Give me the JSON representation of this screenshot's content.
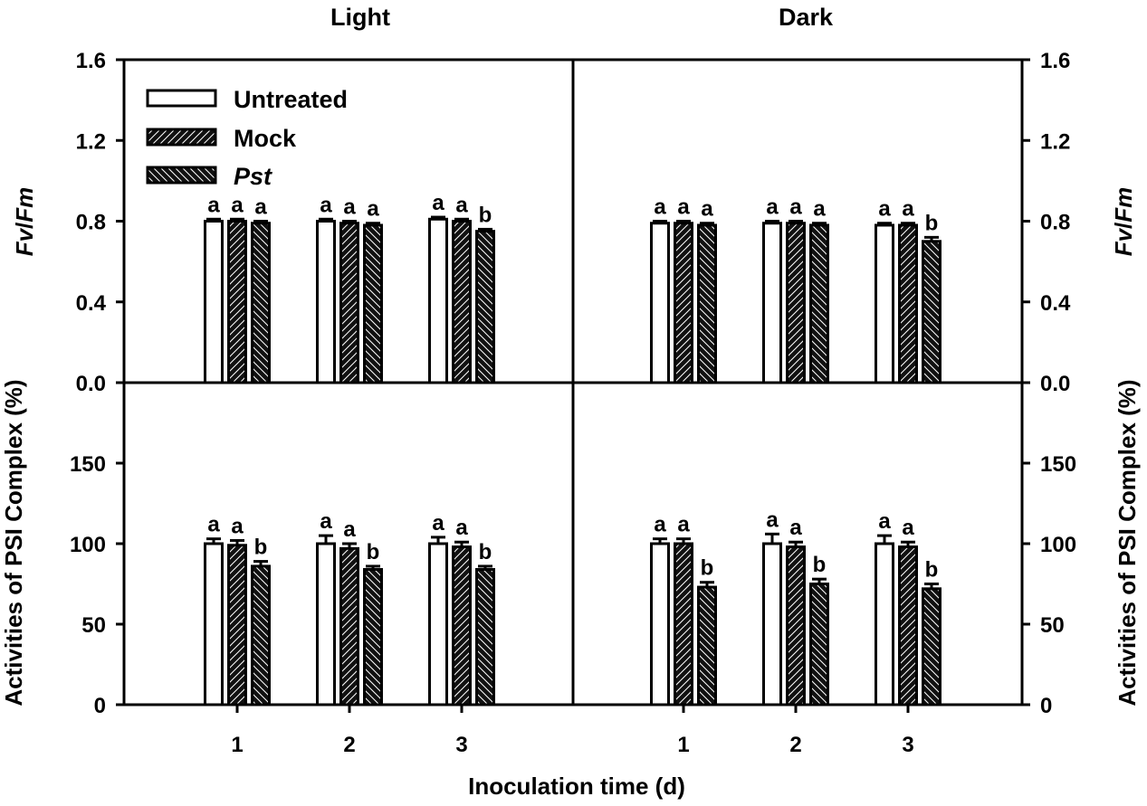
{
  "panel_titles": [
    "Light",
    "Dark"
  ],
  "x_axis_title": "Inoculation time (d)",
  "top_y_title_italic_1": "Fv",
  "top_y_title_sep": "/",
  "top_y_title_italic_2": "Fm",
  "bottom_y_title": "Activities of PSI Complex (%)",
  "top_y_ticks": [
    "0.0",
    "0.4",
    "0.8",
    "1.2",
    "1.6"
  ],
  "bottom_y_ticks": [
    "0",
    "50",
    "100",
    "150"
  ],
  "legend": [
    {
      "label": "Untreated",
      "italic": false
    },
    {
      "label": "Mock",
      "italic": false
    },
    {
      "label": "Pst",
      "italic": true
    }
  ],
  "chart_data": [
    {
      "type": "bar",
      "panel": "Light",
      "title": "Light",
      "xlabel": "",
      "ylabel": "Fv/Fm",
      "ylim": [
        0,
        1.6
      ],
      "categories": [
        "1",
        "2",
        "3"
      ],
      "series": [
        {
          "name": "Untreated",
          "values": [
            0.8,
            0.8,
            0.81
          ],
          "errors": [
            0.01,
            0.01,
            0.01
          ]
        },
        {
          "name": "Mock",
          "values": [
            0.8,
            0.79,
            0.8
          ],
          "errors": [
            0.01,
            0.01,
            0.01
          ]
        },
        {
          "name": "Pst",
          "values": [
            0.79,
            0.78,
            0.75
          ],
          "errors": [
            0.01,
            0.01,
            0.01
          ]
        }
      ],
      "letters": [
        [
          "a",
          "a",
          "a"
        ],
        [
          "a",
          "a",
          "a"
        ],
        [
          "a",
          "a",
          "b"
        ]
      ]
    },
    {
      "type": "bar",
      "panel": "Dark",
      "title": "Dark",
      "xlabel": "",
      "ylabel": "Fv/Fm",
      "ylim": [
        0,
        1.6
      ],
      "categories": [
        "1",
        "2",
        "3"
      ],
      "series": [
        {
          "name": "Untreated",
          "values": [
            0.79,
            0.79,
            0.78
          ],
          "errors": [
            0.01,
            0.01,
            0.01
          ]
        },
        {
          "name": "Mock",
          "values": [
            0.79,
            0.79,
            0.78
          ],
          "errors": [
            0.01,
            0.01,
            0.01
          ]
        },
        {
          "name": "Pst",
          "values": [
            0.78,
            0.78,
            0.7
          ],
          "errors": [
            0.01,
            0.01,
            0.02
          ]
        }
      ],
      "letters": [
        [
          "a",
          "a",
          "a"
        ],
        [
          "a",
          "a",
          "a"
        ],
        [
          "a",
          "a",
          "b"
        ]
      ]
    },
    {
      "type": "bar",
      "panel": "Light",
      "title": "",
      "xlabel": "Inoculation time (d)",
      "ylabel": "Activities of PSI Complex (%)",
      "ylim": [
        0,
        200
      ],
      "categories": [
        "1",
        "2",
        "3"
      ],
      "series": [
        {
          "name": "Untreated",
          "values": [
            100,
            100,
            100
          ],
          "errors": [
            3,
            5,
            4
          ]
        },
        {
          "name": "Mock",
          "values": [
            99,
            97,
            98
          ],
          "errors": [
            3,
            3,
            3
          ]
        },
        {
          "name": "Pst",
          "values": [
            86,
            84,
            84
          ],
          "errors": [
            3,
            2,
            2
          ]
        }
      ],
      "letters": [
        [
          "a",
          "a",
          "b"
        ],
        [
          "a",
          "a",
          "b"
        ],
        [
          "a",
          "a",
          "b"
        ]
      ]
    },
    {
      "type": "bar",
      "panel": "Dark",
      "title": "",
      "xlabel": "Inoculation time (d)",
      "ylabel": "Activities of PSI Complex (%)",
      "ylim": [
        0,
        200
      ],
      "categories": [
        "1",
        "2",
        "3"
      ],
      "series": [
        {
          "name": "Untreated",
          "values": [
            100,
            100,
            100
          ],
          "errors": [
            3,
            6,
            5
          ]
        },
        {
          "name": "Mock",
          "values": [
            100,
            98,
            98
          ],
          "errors": [
            3,
            3,
            3
          ]
        },
        {
          "name": "Pst",
          "values": [
            73,
            75,
            72
          ],
          "errors": [
            3,
            3,
            3
          ]
        }
      ],
      "letters": [
        [
          "a",
          "a",
          "b"
        ],
        [
          "a",
          "a",
          "b"
        ],
        [
          "a",
          "a",
          "b"
        ]
      ]
    }
  ]
}
